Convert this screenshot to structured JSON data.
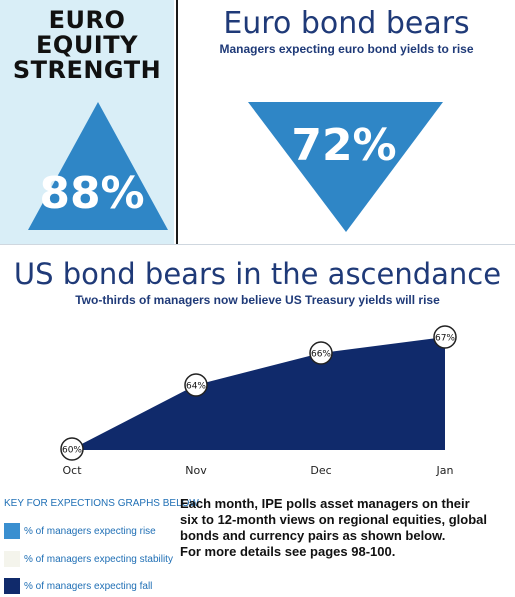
{
  "panels": {
    "equity": {
      "title_lines": [
        "EURO",
        "EQUITY",
        "STRENGTH"
      ],
      "value": "88%"
    },
    "bond": {
      "title": "Euro bond bears",
      "subtitle": "Managers expecting euro bond yields to rise",
      "value": "72%"
    }
  },
  "chart_data": {
    "type": "area",
    "title": "US bond bears in the ascendance",
    "subtitle": "Two-thirds of managers now believe US Treasury yields will rise",
    "categories": [
      "Oct",
      "Nov",
      "Dec",
      "Jan"
    ],
    "values": [
      60,
      64,
      66,
      67
    ],
    "value_labels": [
      "60%",
      "64%",
      "66%",
      "67%"
    ],
    "ylim": [
      60,
      67
    ],
    "grid": false,
    "xlabel": "",
    "ylabel": ""
  },
  "key": {
    "title": "KEY FOR EXPECTIONS GRAPHS BELOW",
    "items": [
      {
        "label": "% of managers expecting rise",
        "color": "#3a8fd0"
      },
      {
        "label": "% of managers expecting stability",
        "color": "#f4f4ec"
      },
      {
        "label": "% of managers expecting fall",
        "color": "#102a6b"
      }
    ]
  },
  "description": [
    "Each month, IPE polls asset managers on their",
    "six to 12-month views on regional equities, global",
    "bonds and currency pairs as shown below.",
    "For more details see pages 98-100."
  ],
  "colors": {
    "up_triangle": "#2f86c6",
    "down_triangle": "#2f86c6",
    "area_fill": "#102a6b",
    "heading": "#1f3a78"
  }
}
